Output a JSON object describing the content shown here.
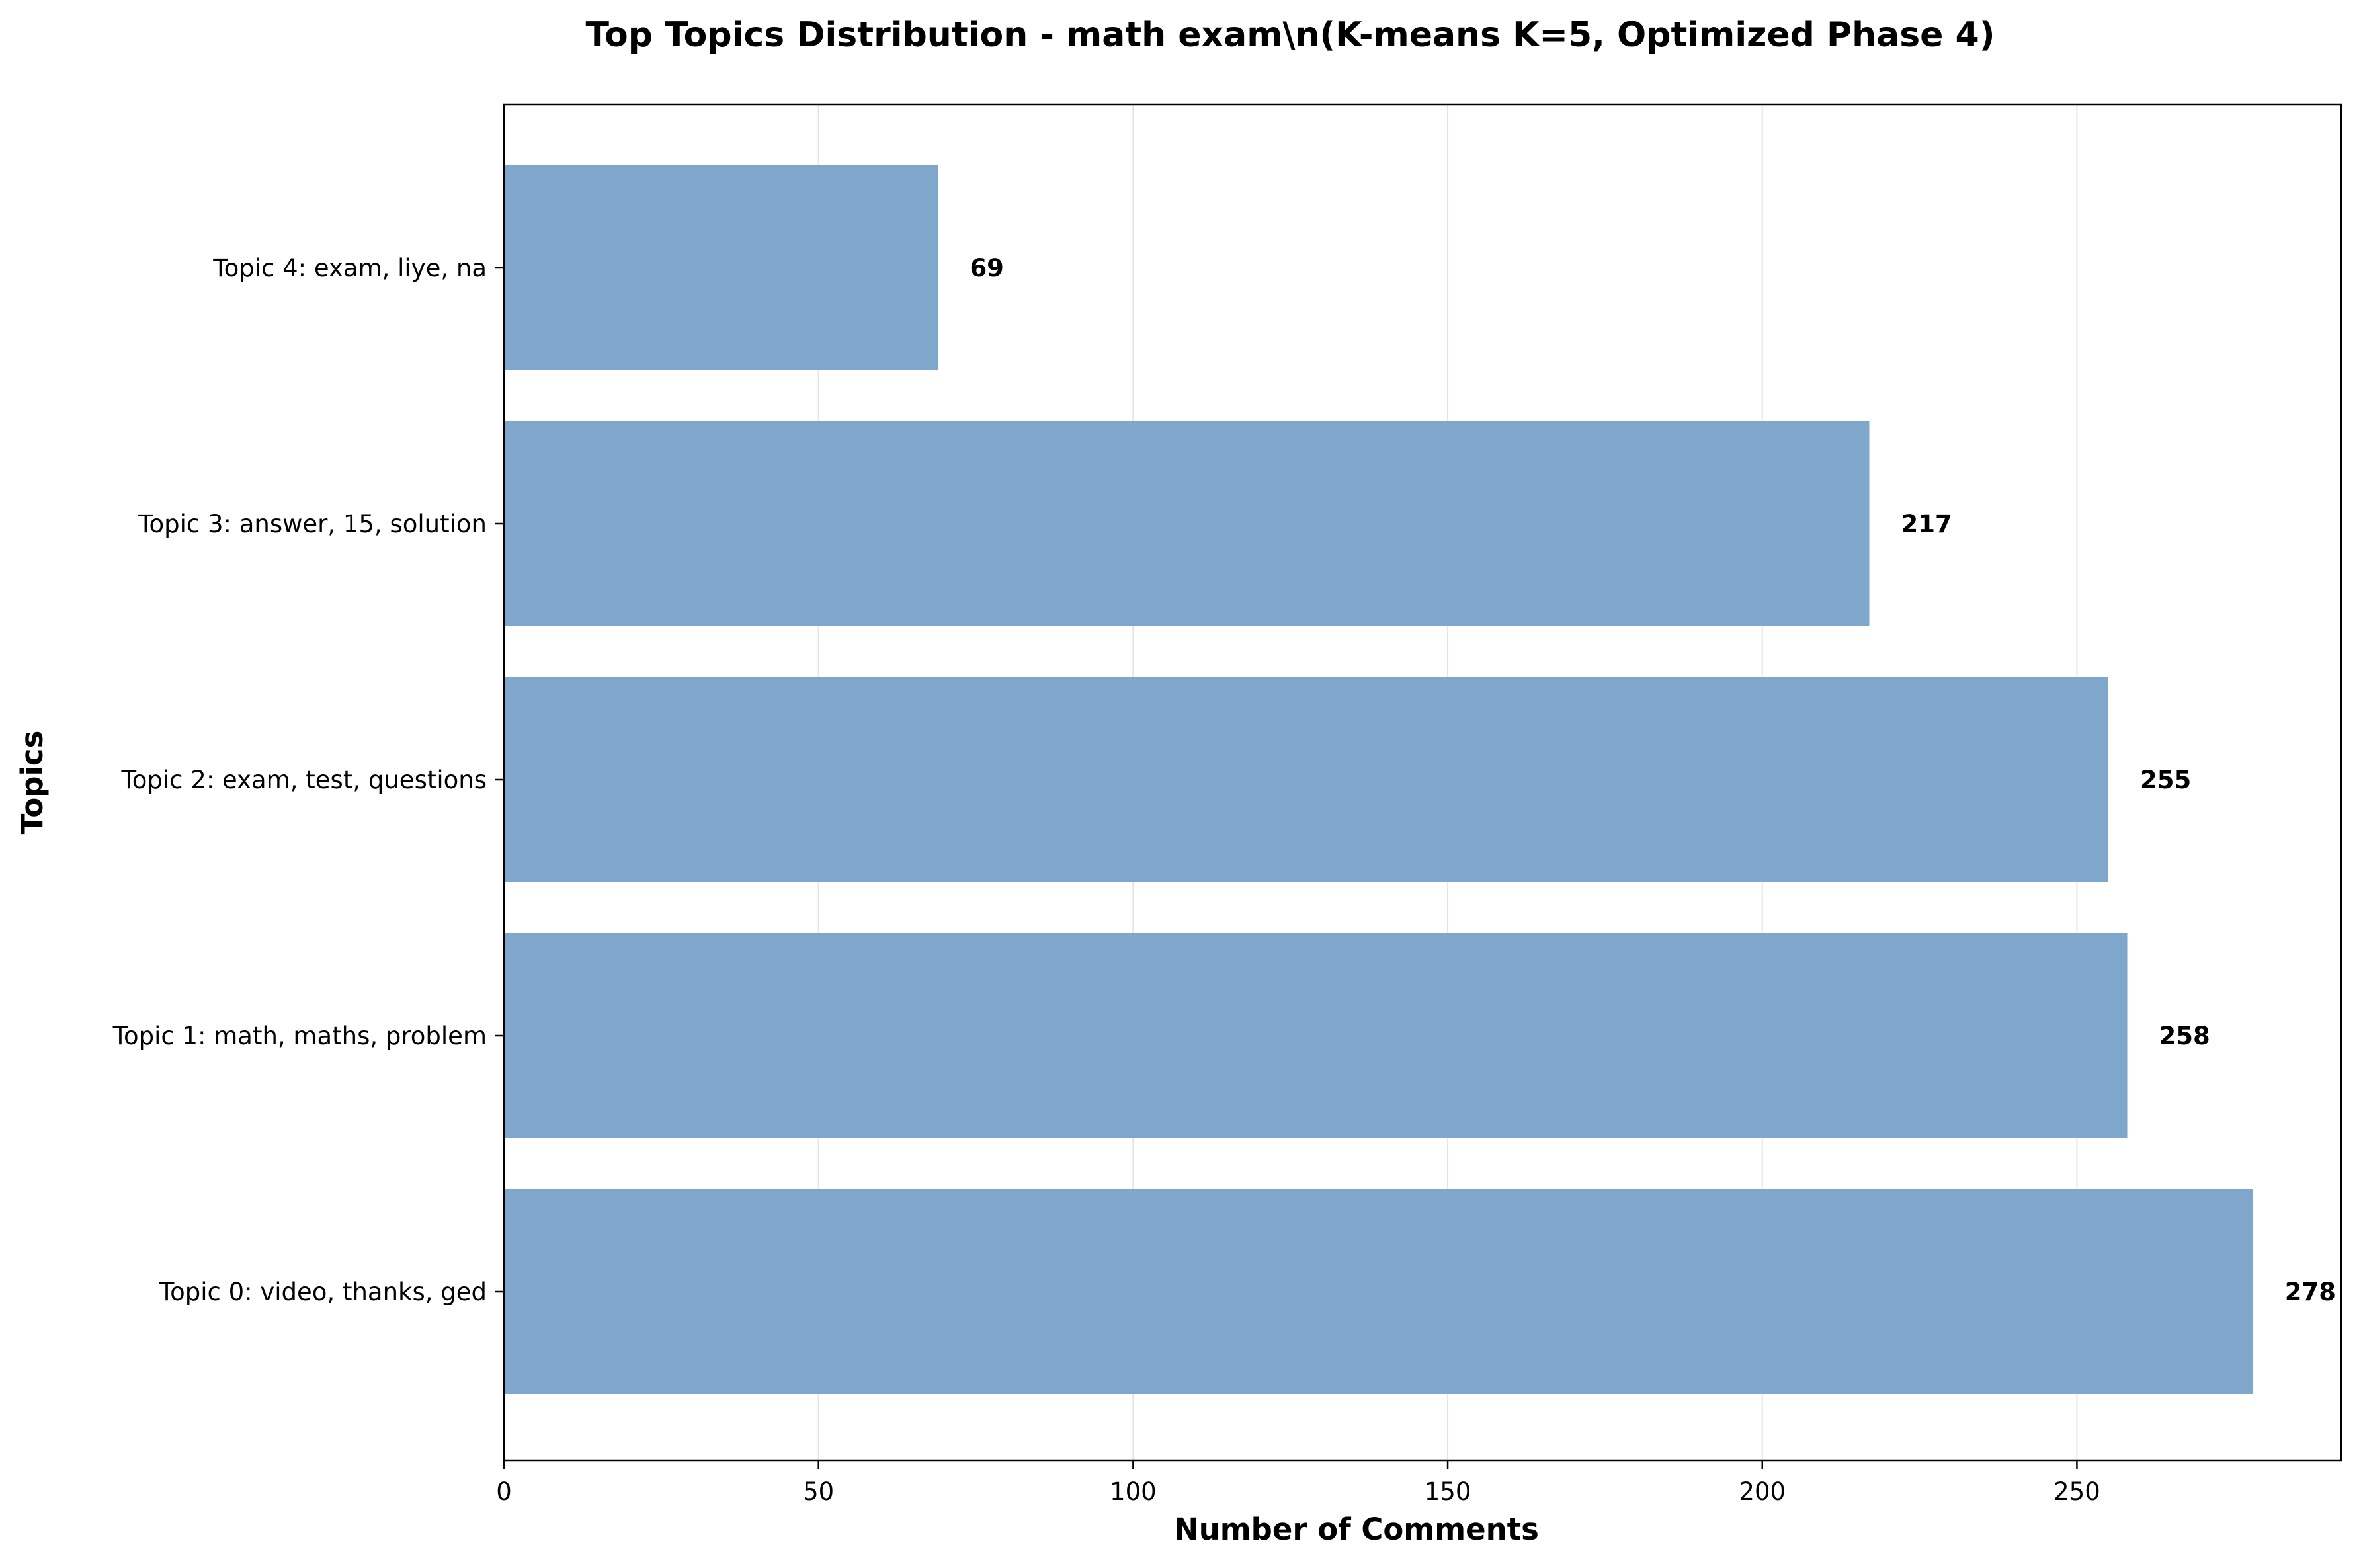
{
  "chart_data": {
    "type": "bar",
    "orientation": "horizontal",
    "title": "Top Topics Distribution - math exam\\n(K-means K=5, Optimized Phase 4)",
    "xlabel": "Number of Comments",
    "ylabel": "Topics",
    "categories": [
      "Topic 4: exam, liye, na",
      "Topic 3: answer, 15, solution",
      "Topic 2: exam, test, questions",
      "Topic 1: math, maths, problem",
      "Topic 0: video, thanks, ged"
    ],
    "values": [
      69,
      217,
      255,
      258,
      278
    ],
    "value_labels": [
      "69",
      "217",
      "255",
      "258",
      "278"
    ],
    "xlim": [
      0,
      292
    ],
    "xticks": [
      0,
      50,
      100,
      150,
      200,
      250
    ],
    "xtick_labels": [
      "0",
      "50",
      "100",
      "150",
      "200",
      "250"
    ],
    "grid": "x",
    "bar_color": "#7ea7cb",
    "legend": "none"
  }
}
